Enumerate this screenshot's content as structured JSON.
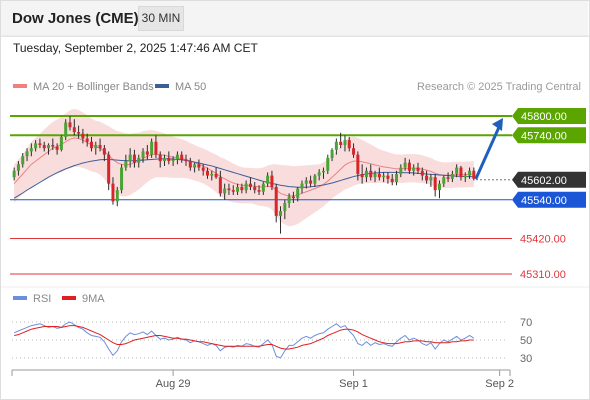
{
  "header": {
    "title": "Dow Jones (CME)",
    "timeframe": "30 MIN",
    "datetime": "Tuesday, September 2, 2025 1:47:46 AM CET"
  },
  "legend": {
    "ma20_bollinger": "MA 20 + Bollinger Bands",
    "ma50": "MA 50",
    "credit": "Research © 2025 Trading Central"
  },
  "colors": {
    "resistance": "#5aa500",
    "pivot": "#1a56d6",
    "support": "#e0363b",
    "current": "#333333",
    "bollinger": "#f8d6d6",
    "ma20": "#f08080",
    "ma50": "#3c5f9a",
    "rsi": "#6a8fde",
    "rsi_ma": "#e02020",
    "up_candle": "#4aa334",
    "down_candle": "#d6262b",
    "arrow": "#1f5fbf"
  },
  "levels": [
    {
      "label": "45800.00",
      "value": 45800,
      "type": "resistance"
    },
    {
      "label": "45740.00",
      "value": 45740,
      "type": "resistance"
    },
    {
      "label": "45602.00",
      "value": 45602,
      "type": "current"
    },
    {
      "label": "45540.00",
      "value": 45540,
      "type": "pivot"
    },
    {
      "label": "45420.00",
      "value": 45420,
      "type": "support"
    },
    {
      "label": "45310.00",
      "value": 45310,
      "type": "support"
    }
  ],
  "x_ticks": [
    {
      "label": "Aug 29",
      "bar": 37
    },
    {
      "label": "Sep 1",
      "bar": 79
    },
    {
      "label": "Sep 2",
      "bar": 113
    }
  ],
  "rsi_panel": {
    "rsi_label": "RSI",
    "ma_label": "9MA",
    "ticks": [
      {
        "label": "70",
        "value": 70
      },
      {
        "label": "50",
        "value": 50
      },
      {
        "label": "30",
        "value": 30
      }
    ]
  },
  "chart_data": {
    "type": "candlestick",
    "ylim": [
      45285,
      45865
    ],
    "candles": [
      [
        45610,
        45640,
        45600,
        45630
      ],
      [
        45630,
        45660,
        45615,
        45650
      ],
      [
        45650,
        45685,
        45640,
        45675
      ],
      [
        45675,
        45700,
        45660,
        45690
      ],
      [
        45690,
        45715,
        45675,
        45700
      ],
      [
        45700,
        45725,
        45690,
        45715
      ],
      [
        45715,
        45730,
        45700,
        45710
      ],
      [
        45710,
        45720,
        45690,
        45700
      ],
      [
        45700,
        45715,
        45680,
        45710
      ],
      [
        45710,
        45730,
        45695,
        45705
      ],
      [
        45705,
        45715,
        45680,
        45695
      ],
      [
        45695,
        45740,
        45690,
        45735
      ],
      [
        45735,
        45790,
        45725,
        45780
      ],
      [
        45780,
        45800,
        45755,
        45765
      ],
      [
        45765,
        45790,
        45740,
        45750
      ],
      [
        45750,
        45770,
        45730,
        45745
      ],
      [
        45745,
        45760,
        45715,
        45730
      ],
      [
        45730,
        45745,
        45705,
        45720
      ],
      [
        45720,
        45735,
        45690,
        45700
      ],
      [
        45700,
        45720,
        45680,
        45710
      ],
      [
        45710,
        45730,
        45690,
        45700
      ],
      [
        45700,
        45710,
        45660,
        45680
      ],
      [
        45680,
        45690,
        45570,
        45590
      ],
      [
        45590,
        45610,
        45525,
        45535
      ],
      [
        45535,
        45580,
        45520,
        45570
      ],
      [
        45570,
        45650,
        45560,
        45640
      ],
      [
        45640,
        45680,
        45630,
        45660
      ],
      [
        45660,
        45700,
        45640,
        45680
      ],
      [
        45680,
        45695,
        45640,
        45655
      ],
      [
        45655,
        45680,
        45640,
        45670
      ],
      [
        45670,
        45700,
        45655,
        45690
      ],
      [
        45690,
        45710,
        45665,
        45680
      ],
      [
        45680,
        45730,
        45670,
        45720
      ],
      [
        45720,
        45740,
        45670,
        45680
      ],
      [
        45680,
        45690,
        45640,
        45660
      ],
      [
        45660,
        45680,
        45645,
        45670
      ],
      [
        45670,
        45690,
        45650,
        45660
      ],
      [
        45660,
        45675,
        45645,
        45665
      ],
      [
        45665,
        45690,
        45650,
        45680
      ],
      [
        45680,
        45690,
        45655,
        45665
      ],
      [
        45665,
        45680,
        45645,
        45660
      ],
      [
        45660,
        45670,
        45630,
        45640
      ],
      [
        45640,
        45655,
        45625,
        45650
      ],
      [
        45650,
        45665,
        45630,
        45640
      ],
      [
        45640,
        45650,
        45615,
        45630
      ],
      [
        45630,
        45640,
        45605,
        45615
      ],
      [
        45615,
        45630,
        45600,
        45620
      ],
      [
        45620,
        45640,
        45605,
        45610
      ],
      [
        45610,
        45630,
        45550,
        45560
      ],
      [
        45560,
        45590,
        45540,
        45575
      ],
      [
        45575,
        45590,
        45555,
        45570
      ],
      [
        45570,
        45585,
        45555,
        45565
      ],
      [
        45565,
        45590,
        45555,
        45580
      ],
      [
        45580,
        45590,
        45560,
        45570
      ],
      [
        45570,
        45600,
        45560,
        45590
      ],
      [
        45590,
        45610,
        45570,
        45580
      ],
      [
        45580,
        45595,
        45560,
        45570
      ],
      [
        45570,
        45585,
        45555,
        45565
      ],
      [
        45565,
        45595,
        45555,
        45590
      ],
      [
        45590,
        45625,
        45580,
        45615
      ],
      [
        45615,
        45630,
        45570,
        45580
      ],
      [
        45580,
        45590,
        45470,
        45490
      ],
      [
        45490,
        45520,
        45435,
        45505
      ],
      [
        45505,
        45540,
        45480,
        45530
      ],
      [
        45530,
        45560,
        45515,
        45550
      ],
      [
        45550,
        45565,
        45530,
        45545
      ],
      [
        45545,
        45580,
        45535,
        45575
      ],
      [
        45575,
        45600,
        45560,
        45590
      ],
      [
        45590,
        45610,
        45575,
        45600
      ],
      [
        45600,
        45615,
        45580,
        45590
      ],
      [
        45590,
        45620,
        45580,
        45615
      ],
      [
        45615,
        45635,
        45600,
        45625
      ],
      [
        45625,
        45640,
        45605,
        45630
      ],
      [
        45630,
        45680,
        45620,
        45670
      ],
      [
        45670,
        45700,
        45660,
        45695
      ],
      [
        45695,
        45730,
        45680,
        45720
      ],
      [
        45720,
        45748,
        45700,
        45710
      ],
      [
        45710,
        45740,
        45690,
        45725
      ],
      [
        45725,
        45735,
        45690,
        45700
      ],
      [
        45700,
        45715,
        45670,
        45680
      ],
      [
        45680,
        45690,
        45600,
        45620
      ],
      [
        45620,
        45650,
        45590,
        45610
      ],
      [
        45610,
        45640,
        45595,
        45630
      ],
      [
        45630,
        45650,
        45600,
        45610
      ],
      [
        45610,
        45630,
        45595,
        45620
      ],
      [
        45620,
        45640,
        45600,
        45610
      ],
      [
        45610,
        45625,
        45595,
        45615
      ],
      [
        45615,
        45625,
        45590,
        45605
      ],
      [
        45605,
        45620,
        45585,
        45595
      ],
      [
        45595,
        45630,
        45585,
        45620
      ],
      [
        45620,
        45650,
        45610,
        45640
      ],
      [
        45640,
        45670,
        45630,
        45655
      ],
      [
        45655,
        45665,
        45620,
        45630
      ],
      [
        45630,
        45650,
        45615,
        45640
      ],
      [
        45640,
        45655,
        45620,
        45630
      ],
      [
        45630,
        45640,
        45600,
        45615
      ],
      [
        45615,
        45630,
        45590,
        45600
      ],
      [
        45600,
        45620,
        45580,
        45610
      ],
      [
        45610,
        45620,
        45550,
        45570
      ],
      [
        45570,
        45600,
        45545,
        45590
      ],
      [
        45590,
        45615,
        45580,
        45610
      ],
      [
        45610,
        45625,
        45595,
        45605
      ],
      [
        45605,
        45630,
        45595,
        45620
      ],
      [
        45620,
        45650,
        45610,
        45640
      ],
      [
        45640,
        45645,
        45600,
        45610
      ],
      [
        45610,
        45625,
        45595,
        45615
      ],
      [
        45615,
        45640,
        45605,
        45630
      ],
      [
        45630,
        45640,
        45600,
        45605
      ]
    ],
    "ma20": [
      45590,
      45605,
      45620,
      45635,
      45650,
      45660,
      45670,
      45680,
      45690,
      45700,
      45705,
      45712,
      45720,
      45728,
      45732,
      45730,
      45725,
      45718,
      45710,
      45705,
      45700,
      45690,
      45678,
      45665,
      45655,
      45650,
      45648,
      45650,
      45655,
      45660,
      45668,
      45675,
      45680,
      45682,
      45680,
      45678,
      45675,
      45672,
      45670,
      45668,
      45665,
      45660,
      45655,
      45650,
      45645,
      45638,
      45630,
      45622,
      45612,
      45605,
      45598,
      45592,
      45588,
      45585,
      45584,
      45584,
      45582,
      45580,
      45580,
      45582,
      45580,
      45570,
      45560,
      45555,
      45552,
      45552,
      45555,
      45560,
      45565,
      45570,
      45575,
      45580,
      45588,
      45598,
      45610,
      45622,
      45635,
      45648,
      45655,
      45660,
      45660,
      45658,
      45655,
      45652,
      45648,
      45645,
      45642,
      45640,
      45638,
      45636,
      45636,
      45637,
      45638,
      45638,
      45637,
      45635,
      45632,
      45628,
      45622,
      45618,
      45616,
      45616,
      45617,
      45618,
      45618,
      45618,
      45619,
      45620
    ],
    "ma50": [
      45545,
      45553,
      45561,
      45570,
      45578,
      45586,
      45594,
      45602,
      45610,
      45617,
      45624,
      45630,
      45636,
      45641,
      45646,
      45650,
      45654,
      45657,
      45660,
      45662,
      45664,
      45665,
      45665,
      45664,
      45663,
      45662,
      45661,
      45661,
      45661,
      45662,
      45663,
      45664,
      45665,
      45666,
      45667,
      45667,
      45667,
      45666,
      45665,
      45664,
      45662,
      45660,
      45657,
      45654,
      45651,
      45648,
      45645,
      45641,
      45637,
      45633,
      45629,
      45625,
      45621,
      45617,
      45613,
      45609,
      45605,
      45601,
      45597,
      45594,
      45591,
      45588,
      45585,
      45583,
      45581,
      45580,
      45579,
      45579,
      45579,
      45580,
      45582,
      45584,
      45586,
      45589,
      45592,
      45596,
      45600,
      45604,
      45608,
      45612,
      45615,
      45618,
      45620,
      45622,
      45623,
      45624,
      45625,
      45625,
      45625,
      45625,
      45625,
      45624,
      45624,
      45623,
      45622,
      45621,
      45620,
      45619,
      45618,
      45617,
      45616,
      45615,
      45614,
      45613,
      45613,
      45612,
      45612,
      45612
    ],
    "bollinger_width": [
      60,
      60,
      62,
      65,
      70,
      72,
      75,
      78,
      80,
      82,
      84,
      86,
      88,
      90,
      90,
      88,
      86,
      84,
      82,
      80,
      82,
      85,
      90,
      95,
      98,
      100,
      98,
      95,
      92,
      88,
      85,
      80,
      76,
      72,
      70,
      68,
      66,
      64,
      62,
      60,
      58,
      56,
      55,
      54,
      54,
      55,
      56,
      58,
      60,
      62,
      62,
      60,
      58,
      56,
      55,
      55,
      56,
      58,
      60,
      64,
      70,
      80,
      88,
      92,
      94,
      92,
      90,
      86,
      82,
      78,
      74,
      70,
      68,
      66,
      66,
      68,
      72,
      76,
      78,
      76,
      72,
      68,
      64,
      60,
      56,
      52,
      50,
      48,
      46,
      45,
      44,
      44,
      44,
      44,
      44,
      43,
      42,
      42,
      41,
      40,
      40,
      40,
      40,
      40,
      40,
      40,
      40,
      40
    ],
    "rsi": [
      58,
      60,
      62,
      64,
      66,
      67,
      68,
      66,
      64,
      65,
      63,
      64,
      68,
      70,
      67,
      64,
      62,
      58,
      55,
      54,
      53,
      48,
      40,
      33,
      38,
      48,
      54,
      58,
      56,
      57,
      59,
      56,
      60,
      55,
      51,
      52,
      50,
      51,
      53,
      51,
      50,
      47,
      49,
      48,
      46,
      44,
      46,
      44,
      38,
      42,
      43,
      42,
      44,
      43,
      46,
      45,
      43,
      42,
      46,
      50,
      45,
      32,
      30,
      38,
      44,
      44,
      48,
      52,
      54,
      52,
      55,
      57,
      58,
      62,
      65,
      68,
      64,
      66,
      60,
      55,
      46,
      44,
      48,
      44,
      47,
      45,
      46,
      44,
      43,
      48,
      52,
      55,
      50,
      52,
      50,
      46,
      44,
      47,
      40,
      46,
      50,
      48,
      51,
      54,
      50,
      52,
      55,
      52
    ],
    "rsi_ma": [
      55,
      56,
      58,
      60,
      62,
      63,
      64,
      65,
      65,
      65,
      65,
      64,
      65,
      66,
      66,
      65,
      64,
      62,
      60,
      58,
      56,
      53,
      50,
      47,
      45,
      45,
      46,
      48,
      50,
      51,
      52,
      53,
      54,
      55,
      55,
      54,
      53,
      52,
      52,
      51,
      51,
      50,
      49,
      48,
      48,
      47,
      46,
      45,
      44,
      43,
      43,
      43,
      43,
      43,
      43,
      43,
      43,
      43,
      44,
      45,
      45,
      43,
      41,
      40,
      40,
      41,
      42,
      44,
      45,
      46,
      48,
      50,
      52,
      55,
      57,
      59,
      61,
      62,
      62,
      61,
      59,
      56,
      54,
      52,
      50,
      48,
      47,
      46,
      46,
      46,
      47,
      48,
      48,
      49,
      49,
      49,
      48,
      48,
      47,
      47,
      47,
      47,
      48,
      48,
      49,
      49,
      50,
      50
    ]
  }
}
